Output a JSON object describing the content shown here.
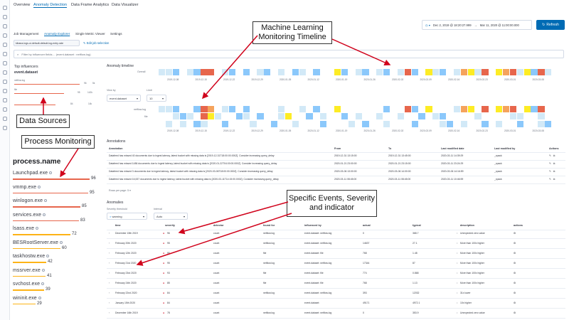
{
  "header": {
    "tabs": [
      "Overview",
      "Anomaly Detection",
      "Data Frame Analytics",
      "Data Visualizer"
    ],
    "active_tab": "Anomaly Detection",
    "subtabs": [
      "Job Management",
      "Anomaly Explorer",
      "Single Metric Viewer",
      "Settings"
    ],
    "active_subtab": "Anomaly Explorer",
    "date_start": "Dec 2, 2019 @ 18:20:27.999",
    "date_arrow": "→",
    "date_end": "Mar 11, 2020 @ 11:00:00.000",
    "refresh_label": "Refresh",
    "job_id": "kibana-logs-ui-default-default-log-entry-rate",
    "edit_job": "Edit job selection",
    "filter_placeholder": "Filter by influencer fields… (event.dataset : netflow.log)"
  },
  "influencers": {
    "title": "Top influencers",
    "field": "event.dataset",
    "items": [
      {
        "name": "netflow.log",
        "score": "96",
        "count": "5k"
      },
      {
        "name": "file",
        "score": "95",
        "count": "142k"
      },
      {
        "name": "",
        "score": "84",
        "count": "14k"
      }
    ]
  },
  "process": {
    "title": "process.name",
    "items": [
      {
        "name": "Launchpad.exe",
        "score": "96",
        "fill": 0.96,
        "color": "#e7664c"
      },
      {
        "name": "vmmp.exe",
        "score": "95",
        "fill": 0.95,
        "color": "#e7664c"
      },
      {
        "name": "winlogon.exe",
        "score": "85",
        "fill": 0.85,
        "color": "#e7664c"
      },
      {
        "name": "services.exe",
        "score": "83",
        "fill": 0.83,
        "color": "#e7664c"
      },
      {
        "name": "lsass.exe",
        "score": "72",
        "fill": 0.72,
        "color": "#fdb316"
      },
      {
        "name": "BESRootServer.exe",
        "score": "60",
        "fill": 0.6,
        "color": "#fdb316"
      },
      {
        "name": "taskhostw.exe",
        "score": "42",
        "fill": 0.42,
        "color": "#fdb316"
      },
      {
        "name": "mssrver.exe",
        "score": "41",
        "fill": 0.41,
        "color": "#fdb316"
      },
      {
        "name": "svchost.exe",
        "score": "39",
        "fill": 0.39,
        "color": "#fdb316"
      },
      {
        "name": "wininit.exe",
        "score": "29",
        "fill": 0.29,
        "color": "#fdb316"
      }
    ]
  },
  "timeline": {
    "title": "Anomaly timeline",
    "overall_label": "Overall",
    "view_by_label": "View by",
    "view_by_value": "event.dataset",
    "limit_label": "Limit",
    "limit_value": "10",
    "swimlane_labels": [
      "netflow.log",
      "file"
    ],
    "dates": [
      "2019-12-08",
      "2019-12-15",
      "2019-12-22",
      "2019-12-29",
      "2020-01-05",
      "2020-01-12",
      "2020-01-19",
      "2020-01-26",
      "2020-02-02",
      "2020-02-09",
      "2020-02-16",
      "2020-02-23",
      "2020-03-01",
      "2020-03-08"
    ],
    "colors": {
      "red": "#e7664c",
      "orange": "#f5a35c",
      "yellow": "#fdec25",
      "blue": "#8bc8fb",
      "lightblue": "#d2e9f7"
    }
  },
  "annotations": {
    "title": "Annotations",
    "columns": [
      "Annotation",
      "From",
      "To",
      "Last modified date",
      "Last modified by",
      "Actions"
    ],
    "rows": [
      [
        "Datafeed has missed 40 documents due to ingest latency, latest bucket with missing data is [2019-12-31T18:00:00.000Z]. Consider increasing query_delay",
        "2019-12-31 13:15:00",
        "2019-12-31 13:45:00",
        "2020-03-11 14:39:29",
        "_xpack"
      ],
      [
        "Datafeed has missed 1486 documents due to ingest latency, latest bucket with missing data is [2020-01-22T04:00:00.000Z]. Consider increasing query_delay",
        "2020-01-21 23:00:00",
        "2020-01-21 23:15:00",
        "2020-03-11 23:24:29",
        "_xpack"
      ],
      [
        "Datafeed has missed 3 documents due to ingest latency, latest bucket with missing data is [2020-03-06T18:00:00.000Z]. Consider increasing query_delay",
        "2020-03-06 13:00:00",
        "2020-03-06 14:00:00",
        "2020-03-06 14:16:59",
        "_xpack"
      ],
      [
        "Datafeed has missed 16,537 documents due to ingest latency, latest bucket with missing data is [2020-03-11T14:15:00.000Z]. Consider increasing query_delay",
        "2020-03-11 08:45:00",
        "2020-03-11 08:45:00",
        "2020-03-11 10:46:59",
        "_xpack"
      ]
    ],
    "rows_per_page": "Rows per page: 5"
  },
  "anomalies": {
    "title": "Anomalies",
    "severity_label": "Severity threshold",
    "severity_value": "warning",
    "interval_label": "Interval",
    "interval_value": "Auto",
    "columns": [
      "time",
      "severity",
      "detector",
      "found for",
      "influenced by",
      "actual",
      "typical",
      "description",
      "actions"
    ],
    "rows": [
      [
        "December 15th 2019",
        "96",
        "count",
        "netflow.log",
        "event.dataset: netflow.log",
        "0",
        "368.7",
        "Unexpected zero value"
      ],
      [
        "February 20th 2020",
        "95",
        "count",
        "netflow.log",
        "event.dataset: netflow.log",
        "14637",
        "27.1",
        "More than 100x higher"
      ],
      [
        "February 12th 2020",
        "95",
        "count",
        "file",
        "event.dataset: file",
        "768",
        "1.48",
        "More than 100x higher"
      ],
      [
        "February 21st 2020",
        "95",
        "count",
        "netflow.log",
        "event.dataset: netflow.log",
        "17344",
        "87",
        "More than 100x higher"
      ],
      [
        "February 23rd 2020",
        "93",
        "count",
        "file",
        "event.dataset: file",
        "774",
        "0.868",
        "More than 100x higher"
      ],
      [
        "February 24th 2020",
        "85",
        "count",
        "file",
        "event.dataset: file",
        "768",
        "1.13",
        "More than 100x higher"
      ],
      [
        "February 22nd 2020",
        "84",
        "count",
        "netflow.log",
        "event.dataset: netflow.log",
        "393",
        "12032",
        "31x lower"
      ],
      [
        "January 15th 2020",
        "84",
        "count",
        "",
        "event.dataset: ",
        "49171",
        "4972.1",
        "10x higher"
      ],
      [
        "December 16th 2019",
        "78",
        "count",
        "netflow.log",
        "event.dataset: netflow.log",
        "0",
        "353.9",
        "Unexpected zero value"
      ]
    ]
  },
  "callouts": {
    "timeline": "Machine Learning\nMonitoring Timeline",
    "data_sources": "Data Sources",
    "process_monitoring": "Process Monitoring",
    "events": "Specific Events, Severity\nand indicator"
  }
}
